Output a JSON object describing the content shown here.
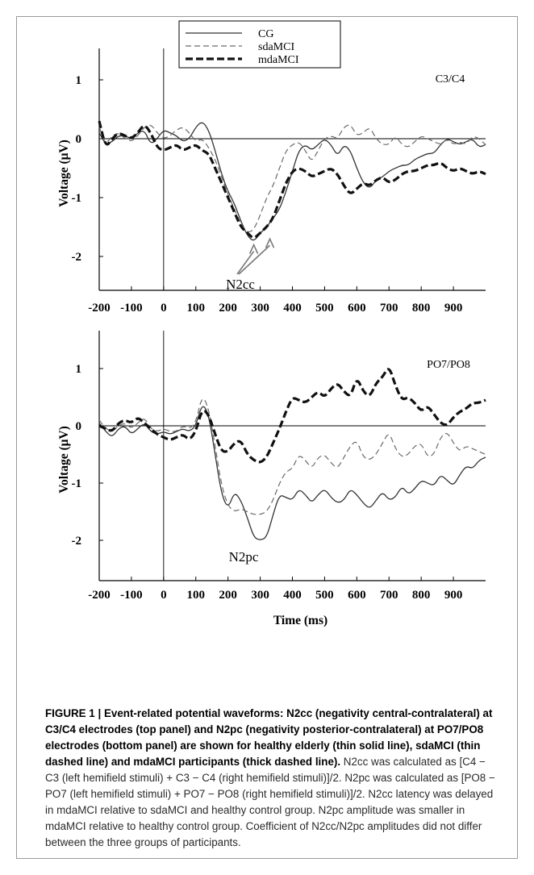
{
  "chart_data": [
    {
      "type": "line",
      "panel_label": "C3/C4",
      "ylabel": "Voltage (μV)",
      "xlabel": "",
      "xlim": [
        -200,
        1000
      ],
      "ylim": [
        -2.6,
        1.5
      ],
      "xticks": [
        "-200",
        "-100",
        "0",
        "100",
        "200",
        "300",
        "400",
        "500",
        "600",
        "700",
        "800",
        "900"
      ],
      "yticks": [
        "1",
        "0",
        "-1",
        "-2"
      ],
      "legend": {
        "position": "top-left",
        "entries": [
          "CG",
          "sdaMCI",
          "mdaMCI"
        ]
      },
      "annotation": {
        "text": "N2cc",
        "arrows_to": [
          [
            280,
            -1.72
          ],
          [
            330,
            -1.62
          ]
        ]
      },
      "series": [
        {
          "name": "CG",
          "style": "thin solid",
          "color": "#333333",
          "x": [
            -200,
            -180,
            -160,
            -140,
            -120,
            -100,
            -80,
            -60,
            -40,
            -20,
            0,
            20,
            40,
            60,
            80,
            100,
            120,
            140,
            160,
            180,
            200,
            220,
            240,
            260,
            280,
            300,
            320,
            340,
            360,
            380,
            400,
            420,
            440,
            460,
            480,
            500,
            520,
            540,
            560,
            580,
            600,
            620,
            640,
            660,
            680,
            700,
            720,
            740,
            760,
            780,
            800,
            820,
            840,
            860,
            880,
            900,
            920,
            940,
            960,
            980,
            1000
          ],
          "y": [
            0.1,
            -0.1,
            -0.05,
            0.05,
            0.05,
            0.0,
            0.1,
            0.15,
            -0.1,
            0.0,
            0.15,
            0.1,
            0.05,
            -0.05,
            0.0,
            0.2,
            0.3,
            0.15,
            -0.2,
            -0.6,
            -0.9,
            -1.1,
            -1.4,
            -1.65,
            -1.75,
            -1.6,
            -1.5,
            -1.35,
            -1.2,
            -0.9,
            -0.55,
            -0.2,
            -0.1,
            -0.2,
            -0.1,
            0.0,
            -0.1,
            -0.3,
            -0.1,
            -0.2,
            -0.5,
            -0.75,
            -0.85,
            -0.7,
            -0.65,
            -0.55,
            -0.5,
            -0.45,
            -0.45,
            -0.35,
            -0.3,
            -0.25,
            -0.25,
            -0.1,
            0.0,
            -0.05,
            -0.1,
            -0.05,
            0.0,
            -0.15,
            -0.1
          ]
        },
        {
          "name": "sdaMCI",
          "style": "thin dashed",
          "color": "#6a6a6a",
          "x": [
            -200,
            -180,
            -160,
            -140,
            -120,
            -100,
            -80,
            -60,
            -40,
            -20,
            0,
            20,
            40,
            60,
            80,
            100,
            120,
            140,
            160,
            180,
            200,
            220,
            240,
            260,
            280,
            300,
            320,
            340,
            360,
            380,
            400,
            420,
            440,
            460,
            480,
            500,
            520,
            540,
            560,
            580,
            600,
            620,
            640,
            660,
            680,
            700,
            720,
            740,
            760,
            780,
            800,
            820,
            840,
            860,
            880,
            900,
            920,
            940,
            960,
            980,
            1000
          ],
          "y": [
            0.2,
            -0.1,
            0.05,
            0.1,
            0.0,
            -0.05,
            0.05,
            0.2,
            0.25,
            0.1,
            0.0,
            0.05,
            0.15,
            0.2,
            0.1,
            -0.05,
            0.0,
            -0.15,
            -0.35,
            -0.65,
            -0.95,
            -1.2,
            -1.45,
            -1.6,
            -1.55,
            -1.3,
            -1.0,
            -0.8,
            -0.5,
            -0.2,
            -0.1,
            -0.05,
            -0.2,
            -0.4,
            -0.2,
            0.0,
            0.05,
            0.0,
            0.2,
            0.25,
            0.05,
            0.1,
            0.2,
            0.0,
            -0.1,
            -0.1,
            0.05,
            -0.1,
            -0.15,
            -0.05,
            0.05,
            0.0,
            -0.05,
            -0.1,
            0.0,
            -0.1,
            -0.05,
            -0.1,
            0.05,
            0.0,
            -0.1
          ]
        },
        {
          "name": "mdaMCI",
          "style": "thick dashed",
          "color": "#111111",
          "x": [
            -200,
            -180,
            -160,
            -140,
            -120,
            -100,
            -80,
            -60,
            -40,
            -20,
            0,
            20,
            40,
            60,
            80,
            100,
            120,
            140,
            160,
            180,
            200,
            220,
            240,
            260,
            280,
            300,
            320,
            340,
            360,
            380,
            400,
            420,
            440,
            460,
            480,
            500,
            520,
            540,
            560,
            580,
            600,
            620,
            640,
            660,
            680,
            700,
            720,
            740,
            760,
            780,
            800,
            820,
            840,
            860,
            880,
            900,
            920,
            940,
            960,
            980,
            1000
          ],
          "y": [
            0.3,
            -0.15,
            0.0,
            0.1,
            0.05,
            0.0,
            0.1,
            0.25,
            0.1,
            -0.15,
            -0.2,
            -0.15,
            -0.1,
            -0.2,
            -0.15,
            -0.1,
            -0.2,
            -0.25,
            -0.5,
            -0.75,
            -1.0,
            -1.25,
            -1.5,
            -1.6,
            -1.7,
            -1.6,
            -1.5,
            -1.35,
            -1.05,
            -0.75,
            -0.55,
            -0.5,
            -0.55,
            -0.65,
            -0.6,
            -0.55,
            -0.5,
            -0.6,
            -0.8,
            -0.95,
            -0.85,
            -0.75,
            -0.8,
            -0.7,
            -0.65,
            -0.75,
            -0.7,
            -0.6,
            -0.55,
            -0.55,
            -0.5,
            -0.45,
            -0.45,
            -0.4,
            -0.5,
            -0.55,
            -0.5,
            -0.55,
            -0.6,
            -0.55,
            -0.6
          ]
        }
      ]
    },
    {
      "type": "line",
      "panel_label": "PO7/PO8",
      "ylabel": "Voltage (μV)",
      "xlabel": "Time (ms)",
      "xlim": [
        -200,
        1000
      ],
      "ylim": [
        -2.6,
        1.5
      ],
      "xticks": [
        "-200",
        "-100",
        "0",
        "100",
        "200",
        "300",
        "400",
        "500",
        "600",
        "700",
        "800",
        "900"
      ],
      "yticks": [
        "1",
        "0",
        "-1",
        "-2"
      ],
      "annotation": {
        "text": "N2pc"
      },
      "series": [
        {
          "name": "CG",
          "style": "thin solid",
          "color": "#333333",
          "x": [
            -200,
            -180,
            -160,
            -140,
            -120,
            -100,
            -80,
            -60,
            -40,
            -20,
            0,
            20,
            40,
            60,
            80,
            100,
            120,
            140,
            160,
            180,
            200,
            220,
            240,
            260,
            280,
            300,
            320,
            340,
            360,
            380,
            400,
            420,
            440,
            460,
            480,
            500,
            520,
            540,
            560,
            580,
            600,
            620,
            640,
            660,
            680,
            700,
            720,
            740,
            760,
            780,
            800,
            820,
            840,
            860,
            880,
            900,
            920,
            940,
            960,
            980,
            1000
          ],
          "y": [
            0.05,
            -0.1,
            -0.2,
            -0.05,
            0.0,
            -0.15,
            -0.05,
            0.05,
            -0.1,
            -0.15,
            -0.1,
            -0.15,
            -0.1,
            -0.05,
            -0.1,
            0.0,
            0.4,
            0.2,
            -0.5,
            -1.2,
            -1.45,
            -1.15,
            -1.3,
            -1.6,
            -1.95,
            -2.0,
            -1.95,
            -1.55,
            -1.2,
            -1.25,
            -1.3,
            -1.1,
            -1.2,
            -1.35,
            -1.2,
            -1.1,
            -1.25,
            -1.35,
            -1.3,
            -1.1,
            -1.2,
            -1.35,
            -1.45,
            -1.3,
            -1.15,
            -1.3,
            -1.25,
            -1.05,
            -1.2,
            -1.1,
            -0.95,
            -1.0,
            -1.05,
            -0.85,
            -0.95,
            -1.05,
            -0.85,
            -0.7,
            -0.75,
            -0.6,
            -0.55
          ]
        },
        {
          "name": "sdaMCI",
          "style": "thin dashed",
          "color": "#6a6a6a",
          "x": [
            -200,
            -180,
            -160,
            -140,
            -120,
            -100,
            -80,
            -60,
            -40,
            -20,
            0,
            20,
            40,
            60,
            80,
            100,
            120,
            140,
            160,
            180,
            200,
            220,
            240,
            260,
            280,
            300,
            320,
            340,
            360,
            380,
            400,
            420,
            440,
            460,
            480,
            500,
            520,
            540,
            560,
            580,
            600,
            620,
            640,
            660,
            680,
            700,
            720,
            740,
            760,
            780,
            800,
            820,
            840,
            860,
            880,
            900,
            920,
            940,
            960,
            980,
            1000
          ],
          "y": [
            0.1,
            -0.05,
            -0.1,
            0.0,
            0.05,
            -0.05,
            0.05,
            0.15,
            -0.05,
            -0.1,
            -0.05,
            -0.1,
            -0.1,
            0.0,
            -0.05,
            0.05,
            0.55,
            0.3,
            -0.35,
            -1.05,
            -1.4,
            -1.5,
            -1.45,
            -1.5,
            -1.55,
            -1.55,
            -1.5,
            -1.3,
            -1.0,
            -0.8,
            -0.75,
            -0.5,
            -0.6,
            -0.75,
            -0.55,
            -0.5,
            -0.65,
            -0.75,
            -0.55,
            -0.35,
            -0.25,
            -0.55,
            -0.6,
            -0.5,
            -0.3,
            -0.1,
            -0.4,
            -0.55,
            -0.5,
            -0.35,
            -0.3,
            -0.55,
            -0.5,
            -0.2,
            -0.1,
            -0.3,
            -0.45,
            -0.35,
            -0.4,
            -0.45,
            -0.5
          ]
        },
        {
          "name": "mdaMCI",
          "style": "thick dashed",
          "color": "#111111",
          "x": [
            -200,
            -180,
            -160,
            -140,
            -120,
            -100,
            -80,
            -60,
            -40,
            -20,
            0,
            20,
            40,
            60,
            80,
            100,
            120,
            140,
            160,
            180,
            200,
            220,
            240,
            260,
            280,
            300,
            320,
            340,
            360,
            380,
            400,
            420,
            440,
            460,
            480,
            500,
            520,
            540,
            560,
            580,
            600,
            620,
            640,
            660,
            680,
            700,
            720,
            740,
            760,
            780,
            800,
            820,
            840,
            860,
            880,
            900,
            920,
            940,
            960,
            980,
            1000
          ],
          "y": [
            0.0,
            -0.05,
            -0.1,
            0.05,
            0.1,
            0.05,
            0.15,
            0.05,
            -0.05,
            -0.15,
            -0.2,
            -0.25,
            -0.2,
            -0.15,
            -0.25,
            -0.1,
            0.3,
            0.2,
            -0.15,
            -0.45,
            -0.45,
            -0.3,
            -0.25,
            -0.5,
            -0.6,
            -0.65,
            -0.55,
            -0.3,
            -0.05,
            0.25,
            0.5,
            0.45,
            0.4,
            0.5,
            0.6,
            0.5,
            0.65,
            0.75,
            0.6,
            0.5,
            0.85,
            0.6,
            0.5,
            0.75,
            0.85,
            1.05,
            0.7,
            0.45,
            0.5,
            0.4,
            0.25,
            0.35,
            0.2,
            0.05,
            0.0,
            0.15,
            0.25,
            0.3,
            0.4,
            0.4,
            0.45
          ]
        }
      ]
    }
  ],
  "caption": {
    "lead": "FIGURE 1 | Event-related potential waveforms: N2cc (negativity central-contralateral) at C3/C4 electrodes (top panel) and N2pc (negativity posterior-contralateral) at PO7/PO8 electrodes (bottom panel) are shown for healthy elderly (thin solid line), sdaMCI (thin dashed line) and mdaMCI participants (thick dashed line).",
    "rest": " N2cc was calculated as [C4 − C3 (left hemifield stimuli) + C3 − C4 (right hemifield stimuli)]/2. N2pc was calculated as [PO8 − PO7 (left hemifield stimuli) + PO7 − PO8 (right hemifield stimuli)]/2. N2cc latency was delayed in mdaMCI relative to sdaMCI and healthy control group. N2pc amplitude was smaller in mdaMCI relative to healthy control group. Coefficient of N2cc/N2pc amplitudes did not differ between the three groups of participants."
  },
  "colors": {
    "frame_border": "#9a9a9a",
    "axis": "#000000",
    "text": "#000000"
  }
}
